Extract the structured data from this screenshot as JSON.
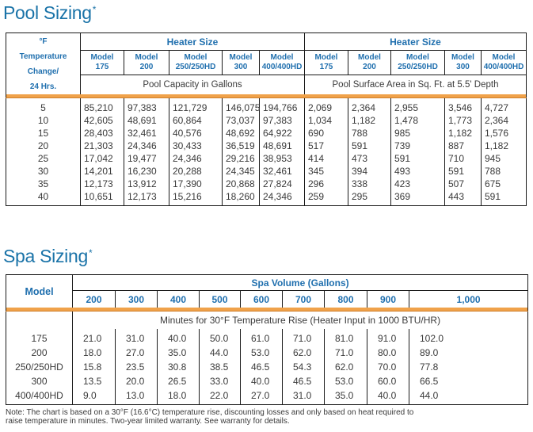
{
  "pool": {
    "title": "Pool Sizing",
    "asterisk": "*",
    "row_header": [
      "°F",
      "Temperature",
      "Change/",
      "24 Hrs."
    ],
    "group_left": "Heater Size",
    "group_right": "Heater Size",
    "models": [
      [
        "Model",
        "175"
      ],
      [
        "Model",
        "200"
      ],
      [
        "Model",
        "250/250HD"
      ],
      [
        "Model",
        "300"
      ],
      [
        "Model",
        "400/400HD"
      ]
    ],
    "caption_left": "Pool Capacity in Gallons",
    "caption_right": "Pool Surface Area in Sq. Ft. at 5.5' Depth",
    "rows": [
      [
        "5",
        "85,210",
        "97,383",
        "121,729",
        "146,075",
        "194,766",
        "2,069",
        "2,364",
        "2,955",
        "3,546",
        "4,727"
      ],
      [
        "10",
        "42,605",
        "48,691",
        "60,864",
        "73,037",
        "97,383",
        "1,034",
        "1,182",
        "1,478",
        "1,773",
        "2,364"
      ],
      [
        "15",
        "28,403",
        "32,461",
        "40,576",
        "48,692",
        "64,922",
        "690",
        "788",
        "985",
        "1,182",
        "1,576"
      ],
      [
        "20",
        "21,303",
        "24,346",
        "30,433",
        "36,519",
        "48,691",
        "517",
        "591",
        "739",
        "887",
        "1,182"
      ],
      [
        "25",
        "17,042",
        "19,477",
        "24,346",
        "29,216",
        "38,953",
        "414",
        "473",
        "591",
        "710",
        "945"
      ],
      [
        "30",
        "14,201",
        "16,230",
        "20,288",
        "24,345",
        "32,461",
        "345",
        "394",
        "493",
        "591",
        "788"
      ],
      [
        "35",
        "12,173",
        "13,912",
        "17,390",
        "20,868",
        "27,824",
        "296",
        "338",
        "423",
        "507",
        "675"
      ],
      [
        "40",
        "10,651",
        "12,173",
        "15,216",
        "18,260",
        "24,346",
        "259",
        "295",
        "369",
        "443",
        "591"
      ]
    ]
  },
  "spa": {
    "title": "Spa Sizing",
    "asterisk": "*",
    "group": "Spa Volume (Gallons)",
    "model_header": "Model",
    "volumes": [
      "200",
      "300",
      "400",
      "500",
      "600",
      "700",
      "800",
      "900",
      "1,000"
    ],
    "minutes_caption": "Minutes for 30°F Temperature Rise (Heater Input in 1000 BTU/HR)",
    "rows": [
      [
        "175",
        "21.0",
        "31.0",
        "40.0",
        "50.0",
        "61.0",
        "71.0",
        "81.0",
        "91.0",
        "102.0"
      ],
      [
        "200",
        "18.0",
        "27.0",
        "35.0",
        "44.0",
        "53.0",
        "62.0",
        "71.0",
        "80.0",
        "89.0"
      ],
      [
        "250/250HD",
        "15.8",
        "23.5",
        "30.8",
        "38.5",
        "46.5",
        "54.3",
        "62.0",
        "70.0",
        "77.8"
      ],
      [
        "300",
        "13.5",
        "20.0",
        "26.5",
        "33.0",
        "40.0",
        "46.5",
        "53.0",
        "60.0",
        "66.5"
      ],
      [
        "400/400HD",
        "9.0",
        "13.0",
        "18.0",
        "22.0",
        "27.0",
        "31.0",
        "35.0",
        "40.0",
        "44.0"
      ]
    ]
  },
  "note": {
    "line1": "Note: The chart is based on a 30°F (16.6°C) temperature rise, discounting losses and only based on heat required to",
    "line2": "raise temperature in minutes. Two-year limited warranty. See warranty for details."
  },
  "colors": {
    "title_blue": "#1a73a8",
    "header_blue": "#1f6fae",
    "orange_bar": "#f0a24a",
    "body_text": "#3a3a3a",
    "border": "#1a1a1a"
  }
}
